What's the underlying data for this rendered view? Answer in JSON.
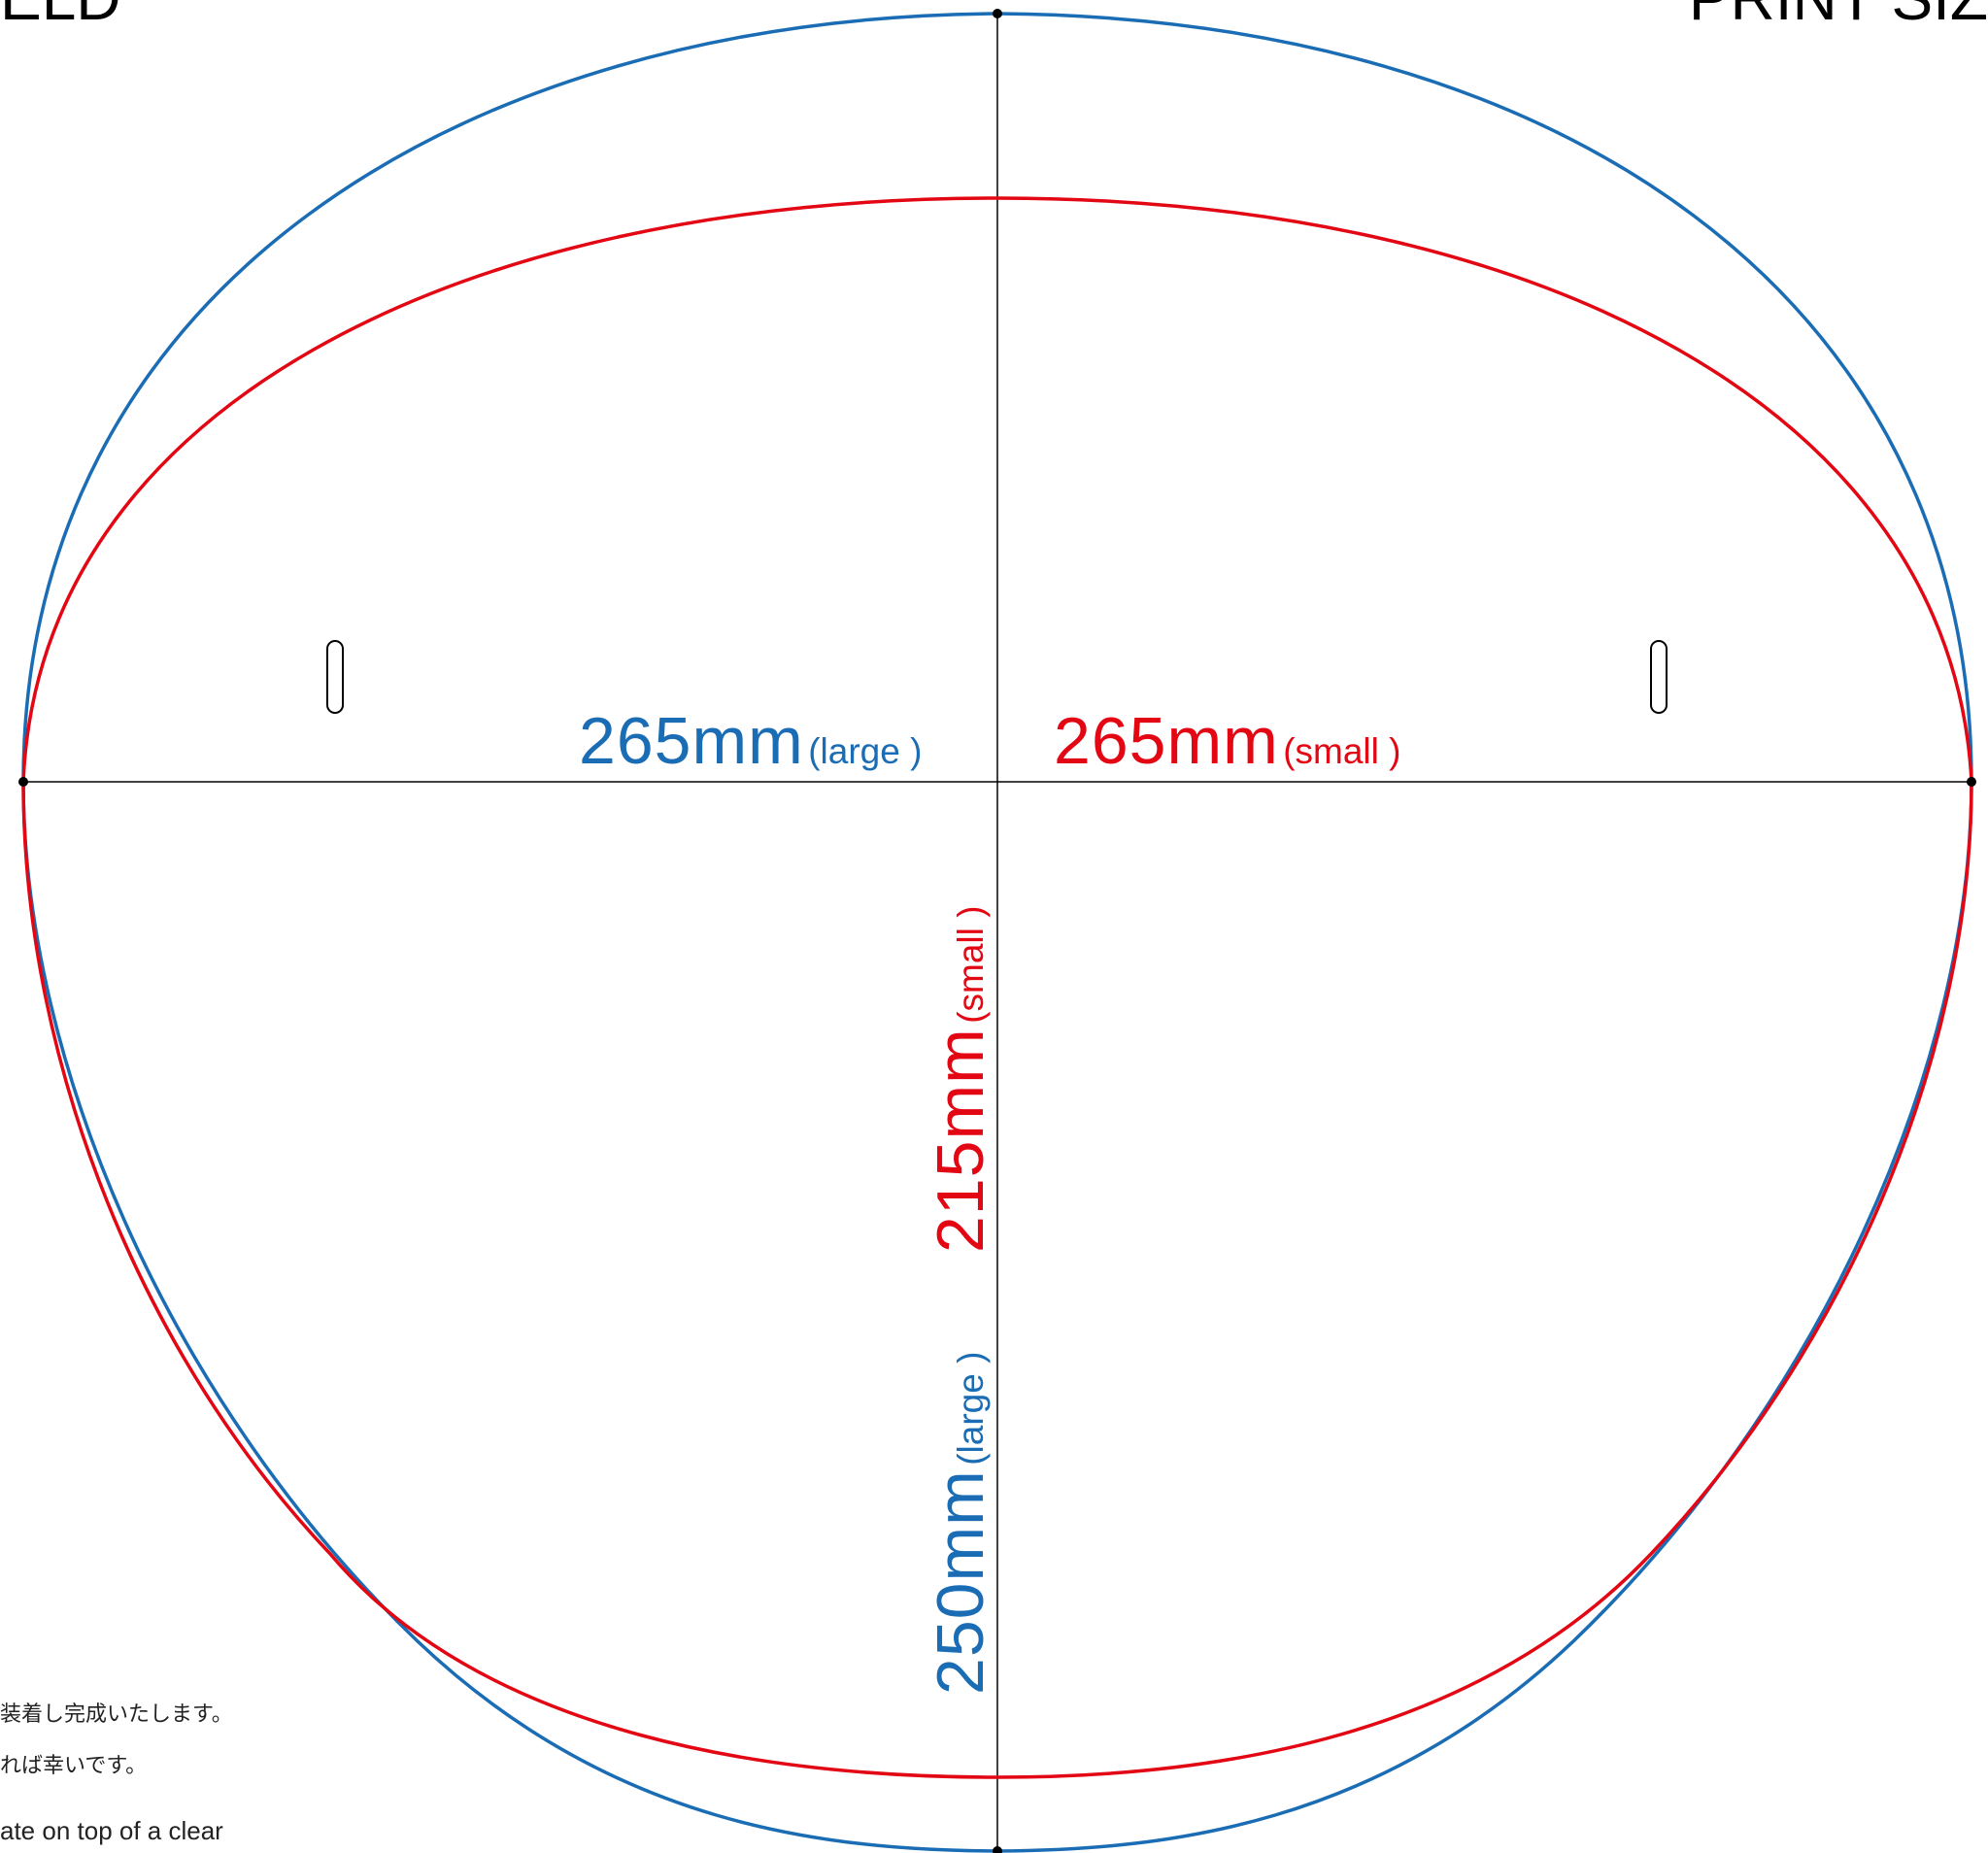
{
  "header": {
    "left_fragment": "ELD",
    "right_fragment": "PRINT SIZ"
  },
  "dimensions": {
    "width_large_value": "265mm",
    "width_large_tag": "(large )",
    "width_small_value": "265mm",
    "width_small_tag": "(small )",
    "height_large_value": "250mm",
    "height_large_tag": "(large )",
    "height_small_value": "215mm",
    "height_small_tag": "(small )"
  },
  "notes": {
    "line1": "装着し完成いたします。",
    "line2": "れば幸いです。",
    "line3": "ate on top of a clear"
  },
  "colors": {
    "large": "#1a6db4",
    "small": "#e30613",
    "guide": "#000000"
  }
}
